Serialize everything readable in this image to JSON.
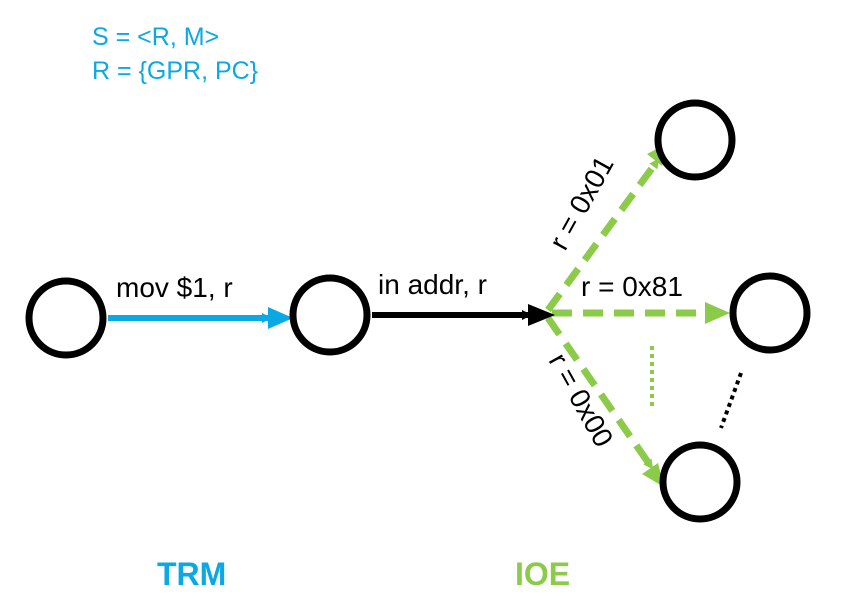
{
  "legend": {
    "state_def": "S = <R, M>",
    "register_def": "R = {GPR, PC}"
  },
  "edges": {
    "mov": "mov $1, r",
    "in": "in addr, r",
    "branch_top": "r = 0x01",
    "branch_mid": "r = 0x81",
    "branch_bottom": "r = 0x00"
  },
  "sections": {
    "trm": "TRM",
    "ioe": "IOE"
  },
  "colors": {
    "trm_blue": "#0aa9e6",
    "ioe_green": "#8ccb4a",
    "node_stroke": "#000000"
  }
}
